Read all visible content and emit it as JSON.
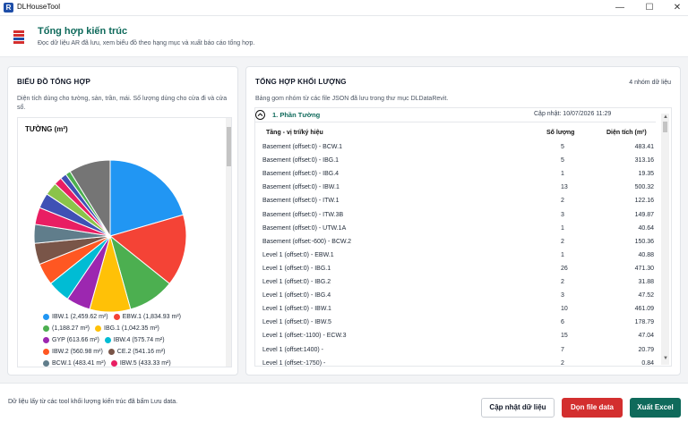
{
  "window": {
    "title": "DLHouseTool",
    "icon_letter": "R",
    "controls": [
      "minimize",
      "maximize",
      "close"
    ]
  },
  "header": {
    "icon": "bars-icon",
    "title": "Tổng hợp kiến trúc",
    "subtitle": "Đọc dữ liệu AR đã lưu, xem biểu đồ theo hạng mục và xuất báo cáo tổng hợp."
  },
  "left_panel": {
    "title": "BIỂU ĐỒ TỔNG HỢP",
    "description": "Diện tích dùng cho tường, sàn, trần, mái. Số lượng dùng cho cửa đi và cửa sổ.",
    "chart_title": "TƯỜNG (m²)"
  },
  "chart_data": {
    "type": "pie",
    "title": "TƯỜNG (m²)",
    "unit": "m²",
    "slices": [
      {
        "label": "IBW.1",
        "value": 2459.62,
        "legend": "IBW.1 (2,459.62 m²)",
        "color": "#2196f3"
      },
      {
        "label": "EBW.1",
        "value": 1834.93,
        "legend": "EBW.1 (1,834.93 m²)",
        "color": "#f44336"
      },
      {
        "label": "",
        "value": 1188.27,
        "legend": "(1,188.27 m²)",
        "color": "#4caf50"
      },
      {
        "label": "IBG.1",
        "value": 1042.35,
        "legend": "IBG.1 (1,042.35 m²)",
        "color": "#ffc107"
      },
      {
        "label": "GYP",
        "value": 613.66,
        "legend": "GYP (613.66 m²)",
        "color": "#9c27b0"
      },
      {
        "label": "IBW.4",
        "value": 575.74,
        "legend": "IBW.4 (575.74 m²)",
        "color": "#00bcd4"
      },
      {
        "label": "IBW.2",
        "value": 560.98,
        "legend": "IBW.2 (560.98 m²)",
        "color": "#ff5722"
      },
      {
        "label": "CE.2",
        "value": 541.16,
        "legend": "CE.2 (541.16 m²)",
        "color": "#795548"
      },
      {
        "label": "BCW.1",
        "value": 483.41,
        "legend": "BCW.1 (483.41 m²)",
        "color": "#607d8b"
      },
      {
        "label": "IBW.5",
        "value": 433.33,
        "legend": "IBW.5 (433.33 m²)",
        "color": "#e91e63"
      },
      {
        "label": "",
        "value": 390,
        "legend": "",
        "color": "#3f51b5"
      },
      {
        "label": "",
        "value": 330,
        "legend": "",
        "color": "#8bc34a"
      },
      {
        "label": "",
        "value": 200,
        "legend": "",
        "color": "#e91e63"
      },
      {
        "label": "",
        "value": 160,
        "legend": "",
        "color": "#3f51b5"
      },
      {
        "label": "",
        "value": 130,
        "legend": "",
        "color": "#4caf50"
      },
      {
        "label": "",
        "value": 1060,
        "legend": "",
        "color": "#757575"
      }
    ]
  },
  "right_panel": {
    "title": "TỔNG HỢP KHỐI LƯỢNG",
    "group_count": "4 nhóm dữ liệu",
    "description": "Bảng gom nhóm từ các file JSON đã lưu trong thư mục DLDataRevit.",
    "group": {
      "expand_icon": "chevron-up-icon",
      "title": "1. Phần Tường",
      "updated": "Cập nhật: 10/07/2026 11:29"
    },
    "columns": [
      "Tầng - vị trí/ký hiệu",
      "Số lượng",
      "Diện tích (m²)"
    ],
    "rows": [
      {
        "name": "Basement (offset:0) - BCW.1",
        "qty": "5",
        "area": "483.41"
      },
      {
        "name": "Basement (offset:0) - IBG.1",
        "qty": "5",
        "area": "313.16"
      },
      {
        "name": "Basement (offset:0) - IBG.4",
        "qty": "1",
        "area": "19.35"
      },
      {
        "name": "Basement (offset:0) - IBW.1",
        "qty": "13",
        "area": "500.32"
      },
      {
        "name": "Basement (offset:0) - ITW.1",
        "qty": "2",
        "area": "122.16"
      },
      {
        "name": "Basement (offset:0) - ITW.3B",
        "qty": "3",
        "area": "149.87"
      },
      {
        "name": "Basement (offset:0) - UTW.1A",
        "qty": "1",
        "area": "40.64"
      },
      {
        "name": "Basement (offset:-600) - BCW.2",
        "qty": "2",
        "area": "150.36"
      },
      {
        "name": "Level 1 (offset:0) - EBW.1",
        "qty": "1",
        "area": "40.88"
      },
      {
        "name": "Level 1 (offset:0) - IBG.1",
        "qty": "26",
        "area": "471.30"
      },
      {
        "name": "Level 1 (offset:0) - IBG.2",
        "qty": "2",
        "area": "31.88"
      },
      {
        "name": "Level 1 (offset:0) - IBG.4",
        "qty": "3",
        "area": "47.52"
      },
      {
        "name": "Level 1 (offset:0) - IBW.1",
        "qty": "10",
        "area": "461.09"
      },
      {
        "name": "Level 1 (offset:0) - IBW.5",
        "qty": "6",
        "area": "178.79"
      },
      {
        "name": "Level 1 (offset:-1100) - ECW.3",
        "qty": "15",
        "area": "47.04"
      },
      {
        "name": "Level 1 (offset:1400) -",
        "qty": "7",
        "area": "20.79"
      },
      {
        "name": "Level 1 (offset:-1750) -",
        "qty": "2",
        "area": "0.84"
      }
    ]
  },
  "footer": {
    "note": "Dữ liệu lấy từ các tool khối lượng kiến trúc đã bấm Lưu data.",
    "refresh_label": "Cập nhật dữ liệu",
    "clean_label": "Dọn file data",
    "export_label": "Xuất Excel",
    "clean_color": "#d32f2f",
    "export_color": "#0f6a5b"
  }
}
